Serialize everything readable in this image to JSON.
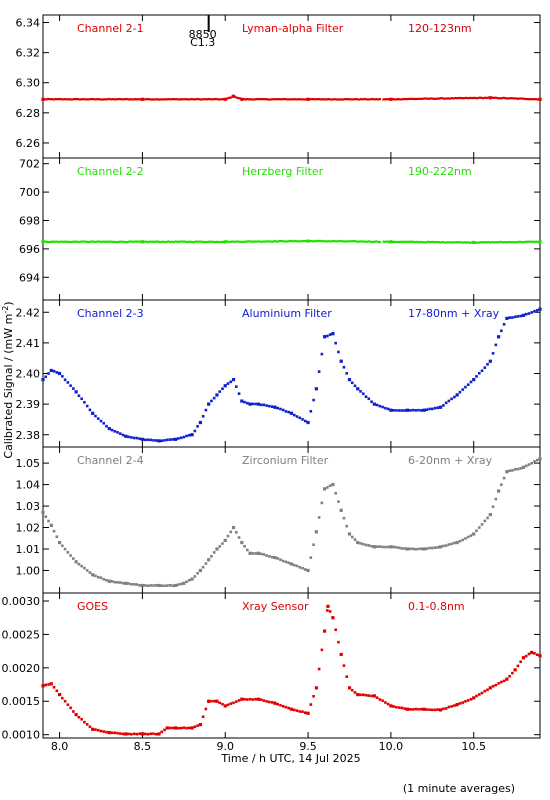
{
  "figure": {
    "ylabel": "Calibrated Signal / (mW m",
    "ylabel_exp": "-2",
    "ylabel_close": ")",
    "xlabel": "Time / h UTC, 14 Jul 2025",
    "footnote": "(1 minute averages)"
  },
  "flare_marker": {
    "id": "8850",
    "class": "C1.3",
    "time": 8.9
  },
  "chart_data": [
    {
      "type": "scatter",
      "channel": "Channel 2-1",
      "filter": "Lyman-alpha Filter",
      "band": "120-123nm",
      "color": "#e00000",
      "xlim": [
        7.9,
        10.9
      ],
      "ylim": [
        6.25,
        6.345
      ],
      "yticks": [
        6.26,
        6.28,
        6.3,
        6.32,
        6.34
      ],
      "ytick_labels": [
        "6.26",
        "6.28",
        "6.30",
        "6.32",
        "6.34"
      ],
      "x": [
        7.9,
        8.5,
        9.0,
        9.05,
        9.1,
        9.5,
        10.0,
        10.6,
        10.9
      ],
      "values": [
        6.289,
        6.289,
        6.289,
        6.291,
        6.289,
        6.289,
        6.289,
        6.29,
        6.289
      ]
    },
    {
      "type": "scatter",
      "channel": "Channel 2-2",
      "filter": "Herzberg Filter",
      "band": "190-222nm",
      "color": "#22e000",
      "xlim": [
        7.9,
        10.9
      ],
      "ylim": [
        692.4,
        702.4
      ],
      "yticks": [
        694,
        696,
        698,
        700,
        702
      ],
      "ytick_labels": [
        "694",
        "696",
        "698",
        "700",
        "702"
      ],
      "x": [
        7.9,
        8.5,
        9.0,
        9.5,
        10.0,
        10.5,
        10.9
      ],
      "values": [
        696.5,
        696.5,
        696.5,
        696.55,
        696.5,
        696.45,
        696.5
      ]
    },
    {
      "type": "scatter",
      "channel": "Channel 2-3",
      "filter": "Aluminium Filter",
      "band": "17-80nm + Xray",
      "color": "#1020d0",
      "xlim": [
        7.9,
        10.9
      ],
      "ylim": [
        2.376,
        2.424
      ],
      "yticks": [
        2.38,
        2.39,
        2.4,
        2.41,
        2.42
      ],
      "ytick_labels": [
        "2.38",
        "2.39",
        "2.40",
        "2.41",
        "2.42"
      ],
      "x": [
        7.9,
        7.95,
        8.0,
        8.1,
        8.2,
        8.3,
        8.4,
        8.5,
        8.6,
        8.7,
        8.8,
        8.85,
        8.9,
        8.95,
        9.0,
        9.05,
        9.1,
        9.15,
        9.2,
        9.3,
        9.4,
        9.5,
        9.55,
        9.6,
        9.65,
        9.7,
        9.75,
        9.8,
        9.9,
        10.0,
        10.1,
        10.2,
        10.3,
        10.4,
        10.5,
        10.6,
        10.65,
        10.7,
        10.8,
        10.9
      ],
      "values": [
        2.398,
        2.401,
        2.4,
        2.394,
        2.387,
        2.382,
        2.3795,
        2.3785,
        2.378,
        2.3785,
        2.38,
        2.384,
        2.39,
        2.393,
        2.396,
        2.398,
        2.391,
        2.39,
        2.39,
        2.389,
        2.387,
        2.384,
        2.395,
        2.412,
        2.413,
        2.404,
        2.398,
        2.395,
        2.39,
        2.388,
        2.388,
        2.388,
        2.389,
        2.393,
        2.398,
        2.404,
        2.412,
        2.418,
        2.419,
        2.421
      ]
    },
    {
      "type": "scatter",
      "channel": "Channel 2-4",
      "filter": "Zirconium Filter",
      "band": "6-20nm + Xray",
      "color": "#808080",
      "xlim": [
        7.9,
        10.9
      ],
      "ylim": [
        0.9895,
        1.0575
      ],
      "yticks": [
        1.0,
        1.01,
        1.02,
        1.03,
        1.04,
        1.05
      ],
      "ytick_labels": [
        "1.00",
        "1.01",
        "1.02",
        "1.03",
        "1.04",
        "1.05"
      ],
      "x": [
        7.9,
        7.95,
        8.0,
        8.1,
        8.2,
        8.3,
        8.4,
        8.5,
        8.6,
        8.7,
        8.75,
        8.8,
        8.85,
        8.9,
        8.95,
        9.0,
        9.05,
        9.1,
        9.15,
        9.2,
        9.3,
        9.4,
        9.5,
        9.55,
        9.6,
        9.65,
        9.7,
        9.75,
        9.8,
        9.9,
        10.0,
        10.1,
        10.2,
        10.3,
        10.4,
        10.5,
        10.6,
        10.65,
        10.7,
        10.8,
        10.9
      ],
      "values": [
        1.027,
        1.021,
        1.013,
        1.004,
        0.998,
        0.995,
        0.994,
        0.993,
        0.993,
        0.993,
        0.994,
        0.996,
        1.0,
        1.005,
        1.01,
        1.014,
        1.02,
        1.013,
        1.008,
        1.008,
        1.006,
        1.003,
        1.0,
        1.018,
        1.038,
        1.04,
        1.028,
        1.017,
        1.013,
        1.011,
        1.011,
        1.01,
        1.01,
        1.011,
        1.013,
        1.017,
        1.026,
        1.037,
        1.046,
        1.048,
        1.052
      ]
    },
    {
      "type": "scatter",
      "channel": "GOES",
      "filter": "Xray Sensor",
      "band": "0.1-0.8nm",
      "color": "#e00000",
      "xlim": [
        7.9,
        10.9
      ],
      "ylim": [
        0.00095,
        0.00312
      ],
      "yticks": [
        0.001,
        0.0015,
        0.002,
        0.0025,
        0.003
      ],
      "ytick_labels": [
        "0.0010",
        "0.0015",
        "0.0020",
        "0.0025",
        "0.0030"
      ],
      "x": [
        7.9,
        7.95,
        8.0,
        8.1,
        8.2,
        8.3,
        8.4,
        8.5,
        8.6,
        8.65,
        8.7,
        8.8,
        8.85,
        8.9,
        8.95,
        9.0,
        9.1,
        9.2,
        9.3,
        9.4,
        9.5,
        9.55,
        9.6,
        9.62,
        9.65,
        9.7,
        9.75,
        9.8,
        9.9,
        10.0,
        10.1,
        10.2,
        10.3,
        10.4,
        10.5,
        10.6,
        10.7,
        10.75,
        10.8,
        10.85,
        10.9
      ],
      "values": [
        0.00173,
        0.00176,
        0.0016,
        0.0013,
        0.00108,
        0.00103,
        0.00101,
        0.00101,
        0.00101,
        0.0011,
        0.0011,
        0.0011,
        0.00115,
        0.0015,
        0.0015,
        0.00143,
        0.00153,
        0.00153,
        0.00147,
        0.00138,
        0.00132,
        0.0017,
        0.00255,
        0.00292,
        0.00275,
        0.0022,
        0.0017,
        0.0016,
        0.00158,
        0.00143,
        0.00138,
        0.00138,
        0.00137,
        0.00145,
        0.00155,
        0.0017,
        0.00183,
        0.00197,
        0.00215,
        0.00223,
        0.00218
      ]
    }
  ],
  "x_axis": {
    "xlim": [
      7.9,
      10.9
    ],
    "ticks": [
      8.0,
      8.5,
      9.0,
      9.5,
      10.0,
      10.5
    ],
    "tick_labels": [
      "8.0",
      "8.5",
      "9.0",
      "9.5",
      "10.0",
      "10.5"
    ]
  }
}
